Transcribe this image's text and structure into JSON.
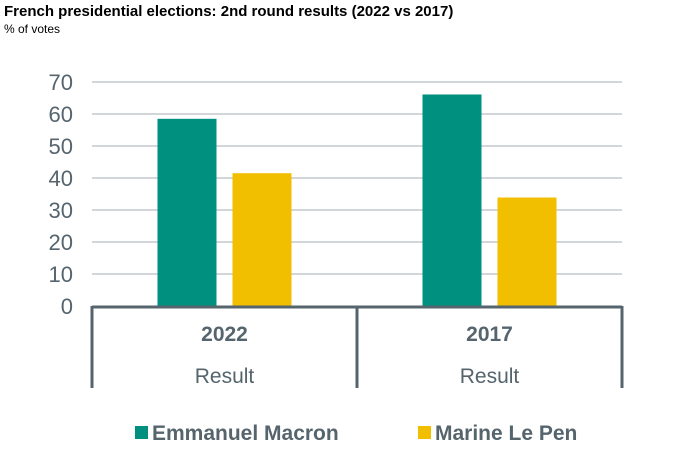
{
  "title": "French presidential elections: 2nd round results (2022 vs 2017)",
  "subtitle": "% of votes",
  "chart_data": {
    "type": "bar",
    "title": "French presidential elections: 2nd round results (2022 vs 2017)",
    "ylabel": "% of votes",
    "categories": [
      "2022",
      "2017"
    ],
    "category_sublabels": [
      "Result",
      "Result"
    ],
    "series": [
      {
        "name": "Emmanuel Macron",
        "color": "#00907F",
        "values": [
          58.5,
          66.1
        ]
      },
      {
        "name": "Marine Le Pen",
        "color": "#F2BE00",
        "values": [
          41.5,
          33.9
        ]
      }
    ],
    "ylim": [
      0,
      70
    ],
    "yticks": [
      "0",
      "10",
      "20",
      "30",
      "40",
      "50",
      "60",
      "70"
    ],
    "grid": true,
    "legend": "bottom"
  }
}
